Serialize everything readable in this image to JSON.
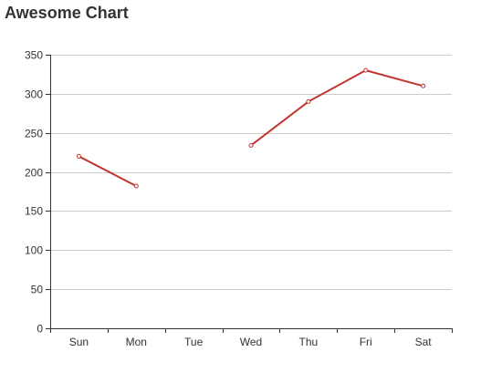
{
  "chart_data": {
    "type": "line",
    "title": "Awesome Chart",
    "categories": [
      "Sun",
      "Mon",
      "Tue",
      "Wed",
      "Thu",
      "Fri",
      "Sat"
    ],
    "series": [
      {
        "values": [
          220,
          182,
          null,
          234,
          290,
          330,
          310
        ]
      }
    ],
    "ylim": [
      0,
      350
    ],
    "yticks": [
      0,
      50,
      100,
      150,
      200,
      250,
      300,
      350
    ],
    "grid": true,
    "legend": "none",
    "colors": {
      "line": "#c23531",
      "grid": "#cccccc",
      "axis": "#333333",
      "text": "#333333",
      "marker_fill": "#ffffff"
    }
  }
}
